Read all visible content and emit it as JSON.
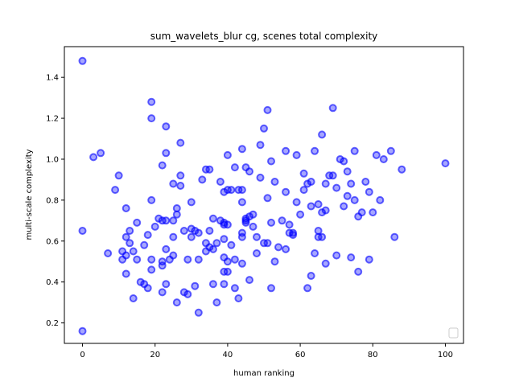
{
  "chart_data": {
    "type": "scatter",
    "title": "sum_wavelets_blur cg, scenes total complexity",
    "xlabel": "human ranking",
    "ylabel": "multi-scale complexity",
    "xlim": [
      -5,
      105
    ],
    "ylim": [
      0.1,
      1.55
    ],
    "xticks": [
      0,
      20,
      40,
      60,
      80,
      100
    ],
    "yticks": [
      0.2,
      0.4,
      0.6,
      0.8,
      1.0,
      1.2,
      1.4
    ],
    "ytick_labels": [
      "0.2",
      "0.4",
      "0.6",
      "0.8",
      "1.0",
      "1.2",
      "1.4"
    ],
    "grid": false,
    "legend": "lower-right, empty",
    "marker_color": "#0000ff",
    "points": [
      [
        0,
        1.48
      ],
      [
        0,
        0.65
      ],
      [
        0,
        0.16
      ],
      [
        3,
        1.01
      ],
      [
        5,
        1.03
      ],
      [
        7,
        0.54
      ],
      [
        9,
        0.85
      ],
      [
        10,
        0.92
      ],
      [
        11,
        0.55
      ],
      [
        11,
        0.51
      ],
      [
        12,
        0.62
      ],
      [
        12,
        0.76
      ],
      [
        12,
        0.44
      ],
      [
        12,
        0.53
      ],
      [
        13,
        0.65
      ],
      [
        13,
        0.59
      ],
      [
        14,
        0.55
      ],
      [
        14,
        0.32
      ],
      [
        15,
        0.69
      ],
      [
        15,
        0.51
      ],
      [
        16,
        0.4
      ],
      [
        17,
        0.58
      ],
      [
        17,
        0.39
      ],
      [
        18,
        0.63
      ],
      [
        18,
        0.37
      ],
      [
        19,
        1.28
      ],
      [
        19,
        1.2
      ],
      [
        19,
        0.8
      ],
      [
        19,
        0.51
      ],
      [
        19,
        0.46
      ],
      [
        20,
        0.67
      ],
      [
        21,
        0.71
      ],
      [
        22,
        0.7
      ],
      [
        22,
        0.97
      ],
      [
        22,
        0.5
      ],
      [
        22,
        0.48
      ],
      [
        22,
        0.35
      ],
      [
        23,
        1.16
      ],
      [
        23,
        1.03
      ],
      [
        23,
        0.7
      ],
      [
        23,
        0.56
      ],
      [
        23,
        0.39
      ],
      [
        24,
        0.51
      ],
      [
        25,
        0.88
      ],
      [
        25,
        0.7
      ],
      [
        25,
        0.62
      ],
      [
        25,
        0.53
      ],
      [
        26,
        0.73
      ],
      [
        26,
        0.76
      ],
      [
        26,
        0.3
      ],
      [
        27,
        1.08
      ],
      [
        27,
        0.92
      ],
      [
        27,
        0.87
      ],
      [
        28,
        0.65
      ],
      [
        28,
        0.35
      ],
      [
        29,
        0.51
      ],
      [
        29,
        0.34
      ],
      [
        30,
        0.79
      ],
      [
        30,
        0.66
      ],
      [
        30,
        0.62
      ],
      [
        31,
        0.65
      ],
      [
        31,
        0.38
      ],
      [
        32,
        0.64
      ],
      [
        32,
        0.51
      ],
      [
        32,
        0.25
      ],
      [
        33,
        0.9
      ],
      [
        34,
        0.95
      ],
      [
        34,
        0.59
      ],
      [
        34,
        0.55
      ],
      [
        35,
        0.95
      ],
      [
        35,
        0.57
      ],
      [
        35,
        0.65
      ],
      [
        36,
        0.71
      ],
      [
        36,
        0.56
      ],
      [
        36,
        0.39
      ],
      [
        37,
        0.59
      ],
      [
        37,
        0.3
      ],
      [
        38,
        0.89
      ],
      [
        38,
        0.7
      ],
      [
        39,
        0.84
      ],
      [
        39,
        0.69
      ],
      [
        39,
        0.68
      ],
      [
        39,
        0.61
      ],
      [
        39,
        0.52
      ],
      [
        39,
        0.45
      ],
      [
        39,
        0.39
      ],
      [
        40,
        1.02
      ],
      [
        40,
        0.85
      ],
      [
        40,
        0.68
      ],
      [
        40,
        0.5
      ],
      [
        40,
        0.45
      ],
      [
        41,
        0.85
      ],
      [
        41,
        0.58
      ],
      [
        42,
        0.96
      ],
      [
        42,
        0.51
      ],
      [
        42,
        0.37
      ],
      [
        43,
        0.85
      ],
      [
        43,
        0.32
      ],
      [
        44,
        1.05
      ],
      [
        44,
        0.85
      ],
      [
        44,
        0.79
      ],
      [
        44,
        0.64
      ],
      [
        44,
        0.62
      ],
      [
        44,
        0.49
      ],
      [
        45,
        0.96
      ],
      [
        45,
        0.7
      ],
      [
        45,
        0.69
      ],
      [
        45,
        0.71
      ],
      [
        46,
        0.94
      ],
      [
        46,
        0.72
      ],
      [
        46,
        0.41
      ],
      [
        47,
        0.73
      ],
      [
        47,
        0.67
      ],
      [
        48,
        0.54
      ],
      [
        48,
        0.62
      ],
      [
        49,
        1.07
      ],
      [
        49,
        0.91
      ],
      [
        50,
        1.15
      ],
      [
        50,
        0.59
      ],
      [
        51,
        1.24
      ],
      [
        51,
        0.81
      ],
      [
        51,
        0.59
      ],
      [
        52,
        0.99
      ],
      [
        52,
        0.69
      ],
      [
        52,
        0.37
      ],
      [
        53,
        0.89
      ],
      [
        53,
        0.5
      ],
      [
        54,
        0.57
      ],
      [
        55,
        0.7
      ],
      [
        56,
        1.04
      ],
      [
        56,
        0.84
      ],
      [
        56,
        0.56
      ],
      [
        57,
        0.64
      ],
      [
        57,
        0.68
      ],
      [
        58,
        0.64
      ],
      [
        58,
        0.63
      ],
      [
        59,
        1.02
      ],
      [
        59,
        0.79
      ],
      [
        60,
        0.73
      ],
      [
        61,
        0.93
      ],
      [
        61,
        0.85
      ],
      [
        62,
        0.88
      ],
      [
        62,
        0.37
      ],
      [
        63,
        0.77
      ],
      [
        63,
        0.89
      ],
      [
        63,
        0.43
      ],
      [
        64,
        1.04
      ],
      [
        64,
        0.54
      ],
      [
        65,
        0.78
      ],
      [
        65,
        0.65
      ],
      [
        65,
        0.62
      ],
      [
        66,
        1.12
      ],
      [
        66,
        0.74
      ],
      [
        66,
        0.62
      ],
      [
        67,
        0.88
      ],
      [
        67,
        0.75
      ],
      [
        67,
        0.49
      ],
      [
        68,
        0.92
      ],
      [
        69,
        0.92
      ],
      [
        69,
        1.25
      ],
      [
        70,
        0.86
      ],
      [
        70,
        0.53
      ],
      [
        71,
        1.0
      ],
      [
        72,
        0.99
      ],
      [
        72,
        0.77
      ],
      [
        73,
        0.94
      ],
      [
        73,
        0.82
      ],
      [
        74,
        0.88
      ],
      [
        74,
        0.52
      ],
      [
        75,
        0.8
      ],
      [
        75,
        1.04
      ],
      [
        76,
        0.72
      ],
      [
        76,
        0.45
      ],
      [
        77,
        0.74
      ],
      [
        78,
        0.89
      ],
      [
        79,
        0.84
      ],
      [
        79,
        0.51
      ],
      [
        80,
        0.74
      ],
      [
        81,
        1.02
      ],
      [
        82,
        0.8
      ],
      [
        83,
        1.0
      ],
      [
        85,
        1.04
      ],
      [
        86,
        0.62
      ],
      [
        88,
        0.95
      ],
      [
        100,
        0.98
      ]
    ]
  }
}
